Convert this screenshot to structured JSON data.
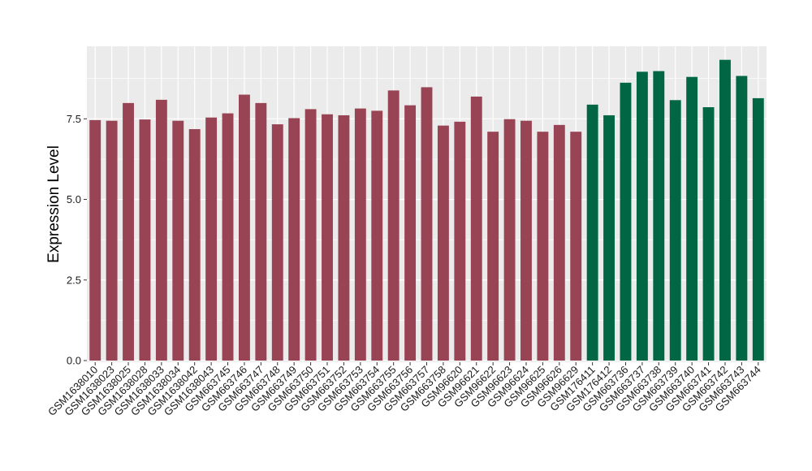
{
  "chart_data": {
    "type": "bar",
    "title": "",
    "xlabel": "",
    "ylabel": "Expression Level",
    "ylim": [
      -0.05,
      9.75
    ],
    "yticks": [
      0.0,
      2.5,
      5.0,
      7.5
    ],
    "ytick_labels": [
      "0.0",
      "2.5",
      "5.0",
      "7.5"
    ],
    "grid": true,
    "legend": "none",
    "background_color": "#ebebeb",
    "grid_color": "#ffffff",
    "categories": [
      "GSM1638010",
      "GSM1638023",
      "GSM1638025",
      "GSM1638028",
      "GSM1638033",
      "GSM1638034",
      "GSM1638042",
      "GSM1638043",
      "GSM663745",
      "GSM663746",
      "GSM663747",
      "GSM663748",
      "GSM663749",
      "GSM663750",
      "GSM663751",
      "GSM663752",
      "GSM663753",
      "GSM663754",
      "GSM663755",
      "GSM663756",
      "GSM663757",
      "GSM663758",
      "GSM96620",
      "GSM96621",
      "GSM96622",
      "GSM96623",
      "GSM96624",
      "GSM96625",
      "GSM96626",
      "GSM96629",
      "GSM176411",
      "GSM176412",
      "GSM663736",
      "GSM663737",
      "GSM663738",
      "GSM663739",
      "GSM663740",
      "GSM663741",
      "GSM663742",
      "GSM663743",
      "GSM663744"
    ],
    "values": [
      7.46,
      7.44,
      7.99,
      7.48,
      8.09,
      7.44,
      7.18,
      7.54,
      7.67,
      8.25,
      7.99,
      7.33,
      7.52,
      7.8,
      7.64,
      7.61,
      7.82,
      7.75,
      8.38,
      7.92,
      8.48,
      7.29,
      7.41,
      8.19,
      7.1,
      7.49,
      7.44,
      7.1,
      7.31,
      7.1,
      7.94,
      7.61,
      8.62,
      8.96,
      8.98,
      8.08,
      8.8,
      7.86,
      9.33,
      8.83,
      8.14
    ],
    "bar_colors": [
      "#994455",
      "#994455",
      "#994455",
      "#994455",
      "#994455",
      "#994455",
      "#994455",
      "#994455",
      "#994455",
      "#994455",
      "#994455",
      "#994455",
      "#994455",
      "#994455",
      "#994455",
      "#994455",
      "#994455",
      "#994455",
      "#994455",
      "#994455",
      "#994455",
      "#994455",
      "#994455",
      "#994455",
      "#994455",
      "#994455",
      "#994455",
      "#994455",
      "#994455",
      "#994455",
      "#006644",
      "#006644",
      "#006644",
      "#006644",
      "#006644",
      "#006644",
      "#006644",
      "#006644",
      "#006644",
      "#006644",
      "#006644"
    ]
  }
}
